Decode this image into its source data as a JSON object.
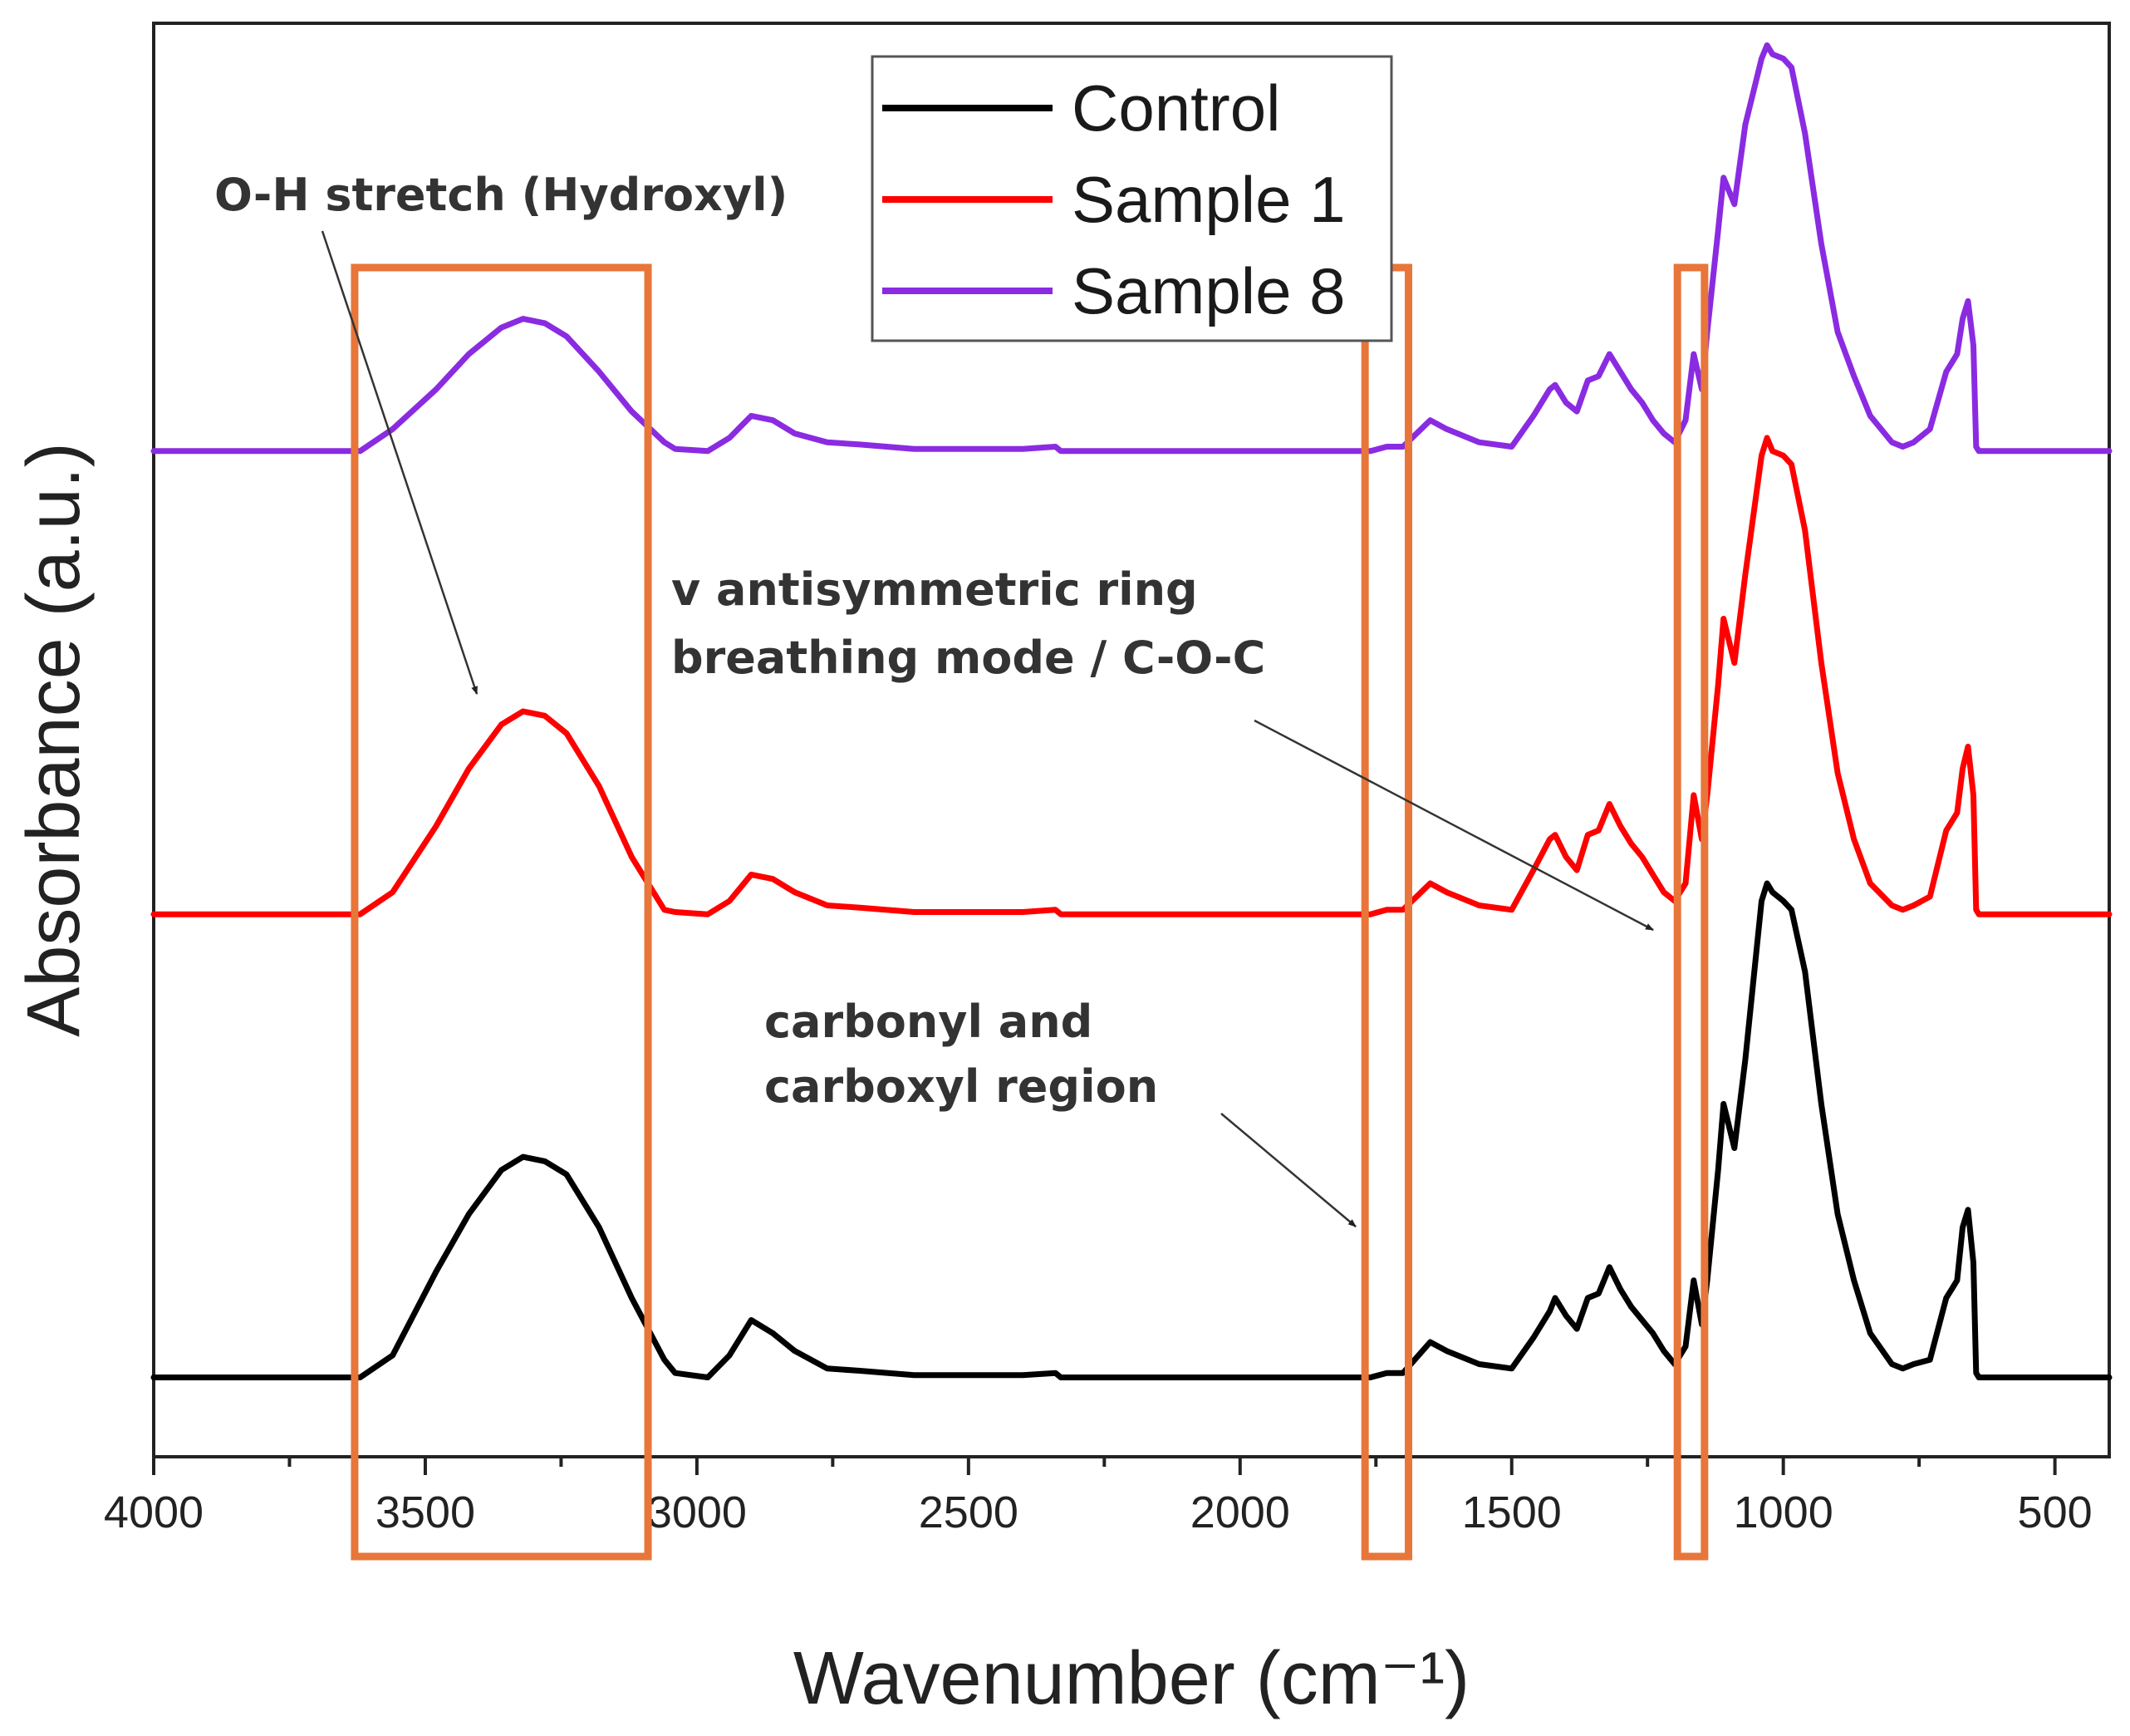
{
  "chart_data": {
    "type": "line",
    "title": "",
    "xlabel": "Wavenumber (cm⁻¹)",
    "ylabel": "Absorbance (a.u.)",
    "xlim": [
      4000,
      400
    ],
    "ylim": [
      0,
      3.25
    ],
    "x_reversed": true,
    "xticks": [
      4000,
      3500,
      3000,
      2500,
      2000,
      1500,
      1000,
      500
    ],
    "xtick_labels": [
      "4000",
      "3500",
      "3000",
      "2500",
      "2000",
      "1500",
      "1000",
      "500"
    ],
    "grid": false,
    "legend_position": "top-center",
    "series": [
      {
        "name": "Control",
        "color": "#000000",
        "points": [
          [
            4000,
            0.18
          ],
          [
            3620,
            0.18
          ],
          [
            3560,
            0.23
          ],
          [
            3480,
            0.42
          ],
          [
            3420,
            0.55
          ],
          [
            3360,
            0.65
          ],
          [
            3320,
            0.68
          ],
          [
            3280,
            0.67
          ],
          [
            3240,
            0.64
          ],
          [
            3180,
            0.52
          ],
          [
            3120,
            0.36
          ],
          [
            3060,
            0.22
          ],
          [
            3040,
            0.19
          ],
          [
            2980,
            0.18
          ],
          [
            2940,
            0.23
          ],
          [
            2900,
            0.31
          ],
          [
            2860,
            0.28
          ],
          [
            2820,
            0.24
          ],
          [
            2760,
            0.2
          ],
          [
            2700,
            0.195
          ],
          [
            2600,
            0.185
          ],
          [
            2500,
            0.185
          ],
          [
            2400,
            0.185
          ],
          [
            2340,
            0.19
          ],
          [
            2330,
            0.18
          ],
          [
            2200,
            0.18
          ],
          [
            1800,
            0.18
          ],
          [
            1760,
            0.18
          ],
          [
            1730,
            0.19
          ],
          [
            1700,
            0.19
          ],
          [
            1650,
            0.26
          ],
          [
            1620,
            0.24
          ],
          [
            1560,
            0.21
          ],
          [
            1500,
            0.2
          ],
          [
            1460,
            0.27
          ],
          [
            1430,
            0.33
          ],
          [
            1420,
            0.36
          ],
          [
            1400,
            0.32
          ],
          [
            1380,
            0.29
          ],
          [
            1360,
            0.36
          ],
          [
            1340,
            0.37
          ],
          [
            1320,
            0.43
          ],
          [
            1300,
            0.38
          ],
          [
            1280,
            0.34
          ],
          [
            1260,
            0.31
          ],
          [
            1240,
            0.28
          ],
          [
            1220,
            0.24
          ],
          [
            1200,
            0.21
          ],
          [
            1180,
            0.25
          ],
          [
            1165,
            0.4
          ],
          [
            1150,
            0.3
          ],
          [
            1140,
            0.4
          ],
          [
            1120,
            0.65
          ],
          [
            1110,
            0.8
          ],
          [
            1090,
            0.7
          ],
          [
            1070,
            0.9
          ],
          [
            1040,
            1.26
          ],
          [
            1030,
            1.3
          ],
          [
            1020,
            1.28
          ],
          [
            1000,
            1.26
          ],
          [
            985,
            1.24
          ],
          [
            960,
            1.1
          ],
          [
            930,
            0.8
          ],
          [
            900,
            0.55
          ],
          [
            870,
            0.4
          ],
          [
            840,
            0.28
          ],
          [
            800,
            0.21
          ],
          [
            780,
            0.2
          ],
          [
            760,
            0.21
          ],
          [
            730,
            0.22
          ],
          [
            700,
            0.36
          ],
          [
            690,
            0.38
          ],
          [
            680,
            0.4
          ],
          [
            670,
            0.52
          ],
          [
            660,
            0.56
          ],
          [
            650,
            0.44
          ],
          [
            645,
            0.19
          ],
          [
            640,
            0.18
          ],
          [
            400,
            0.18
          ]
        ]
      },
      {
        "name": "Sample 1",
        "color": "#ff0000",
        "points": [
          [
            4000,
            1.23
          ],
          [
            3620,
            1.23
          ],
          [
            3560,
            1.28
          ],
          [
            3480,
            1.43
          ],
          [
            3420,
            1.56
          ],
          [
            3360,
            1.66
          ],
          [
            3320,
            1.69
          ],
          [
            3280,
            1.68
          ],
          [
            3240,
            1.64
          ],
          [
            3180,
            1.52
          ],
          [
            3120,
            1.36
          ],
          [
            3060,
            1.24
          ],
          [
            3040,
            1.235
          ],
          [
            2980,
            1.23
          ],
          [
            2940,
            1.26
          ],
          [
            2900,
            1.32
          ],
          [
            2860,
            1.31
          ],
          [
            2820,
            1.28
          ],
          [
            2760,
            1.25
          ],
          [
            2700,
            1.245
          ],
          [
            2600,
            1.235
          ],
          [
            2500,
            1.235
          ],
          [
            2400,
            1.235
          ],
          [
            2340,
            1.24
          ],
          [
            2330,
            1.23
          ],
          [
            2200,
            1.23
          ],
          [
            1800,
            1.23
          ],
          [
            1760,
            1.23
          ],
          [
            1730,
            1.24
          ],
          [
            1700,
            1.24
          ],
          [
            1650,
            1.3
          ],
          [
            1620,
            1.28
          ],
          [
            1560,
            1.25
          ],
          [
            1500,
            1.24
          ],
          [
            1460,
            1.33
          ],
          [
            1430,
            1.4
          ],
          [
            1420,
            1.41
          ],
          [
            1400,
            1.36
          ],
          [
            1380,
            1.33
          ],
          [
            1360,
            1.41
          ],
          [
            1340,
            1.42
          ],
          [
            1320,
            1.48
          ],
          [
            1300,
            1.43
          ],
          [
            1280,
            1.39
          ],
          [
            1260,
            1.36
          ],
          [
            1240,
            1.32
          ],
          [
            1220,
            1.28
          ],
          [
            1200,
            1.26
          ],
          [
            1180,
            1.3
          ],
          [
            1165,
            1.5
          ],
          [
            1150,
            1.4
          ],
          [
            1140,
            1.5
          ],
          [
            1120,
            1.75
          ],
          [
            1110,
            1.9
          ],
          [
            1090,
            1.8
          ],
          [
            1070,
            2.0
          ],
          [
            1040,
            2.27
          ],
          [
            1030,
            2.31
          ],
          [
            1020,
            2.28
          ],
          [
            1000,
            2.27
          ],
          [
            985,
            2.25
          ],
          [
            960,
            2.1
          ],
          [
            930,
            1.8
          ],
          [
            900,
            1.55
          ],
          [
            870,
            1.4
          ],
          [
            840,
            1.3
          ],
          [
            800,
            1.25
          ],
          [
            780,
            1.24
          ],
          [
            760,
            1.25
          ],
          [
            730,
            1.27
          ],
          [
            700,
            1.42
          ],
          [
            690,
            1.44
          ],
          [
            680,
            1.46
          ],
          [
            670,
            1.56
          ],
          [
            660,
            1.61
          ],
          [
            650,
            1.5
          ],
          [
            645,
            1.24
          ],
          [
            640,
            1.23
          ],
          [
            400,
            1.23
          ]
        ]
      },
      {
        "name": "Sample 8",
        "color": "#8a2be2",
        "points": [
          [
            4000,
            2.28
          ],
          [
            3620,
            2.28
          ],
          [
            3560,
            2.33
          ],
          [
            3480,
            2.42
          ],
          [
            3420,
            2.5
          ],
          [
            3360,
            2.56
          ],
          [
            3320,
            2.58
          ],
          [
            3280,
            2.57
          ],
          [
            3240,
            2.54
          ],
          [
            3180,
            2.46
          ],
          [
            3120,
            2.37
          ],
          [
            3060,
            2.3
          ],
          [
            3040,
            2.285
          ],
          [
            2980,
            2.28
          ],
          [
            2940,
            2.31
          ],
          [
            2900,
            2.36
          ],
          [
            2860,
            2.35
          ],
          [
            2820,
            2.32
          ],
          [
            2760,
            2.3
          ],
          [
            2700,
            2.295
          ],
          [
            2600,
            2.285
          ],
          [
            2500,
            2.285
          ],
          [
            2400,
            2.285
          ],
          [
            2340,
            2.29
          ],
          [
            2330,
            2.28
          ],
          [
            2200,
            2.28
          ],
          [
            1800,
            2.28
          ],
          [
            1760,
            2.28
          ],
          [
            1730,
            2.29
          ],
          [
            1700,
            2.29
          ],
          [
            1650,
            2.35
          ],
          [
            1620,
            2.33
          ],
          [
            1560,
            2.3
          ],
          [
            1500,
            2.29
          ],
          [
            1460,
            2.36
          ],
          [
            1430,
            2.42
          ],
          [
            1420,
            2.43
          ],
          [
            1400,
            2.39
          ],
          [
            1380,
            2.37
          ],
          [
            1360,
            2.44
          ],
          [
            1340,
            2.45
          ],
          [
            1320,
            2.5
          ],
          [
            1300,
            2.46
          ],
          [
            1280,
            2.42
          ],
          [
            1260,
            2.39
          ],
          [
            1240,
            2.35
          ],
          [
            1220,
            2.32
          ],
          [
            1200,
            2.3
          ],
          [
            1180,
            2.35
          ],
          [
            1165,
            2.5
          ],
          [
            1150,
            2.42
          ],
          [
            1140,
            2.55
          ],
          [
            1120,
            2.78
          ],
          [
            1110,
            2.9
          ],
          [
            1090,
            2.84
          ],
          [
            1070,
            3.02
          ],
          [
            1040,
            3.17
          ],
          [
            1030,
            3.2
          ],
          [
            1020,
            3.18
          ],
          [
            1000,
            3.17
          ],
          [
            985,
            3.15
          ],
          [
            960,
            3.0
          ],
          [
            930,
            2.75
          ],
          [
            900,
            2.55
          ],
          [
            870,
            2.45
          ],
          [
            840,
            2.36
          ],
          [
            800,
            2.3
          ],
          [
            780,
            2.29
          ],
          [
            760,
            2.3
          ],
          [
            730,
            2.33
          ],
          [
            700,
            2.46
          ],
          [
            690,
            2.48
          ],
          [
            680,
            2.5
          ],
          [
            670,
            2.58
          ],
          [
            660,
            2.62
          ],
          [
            650,
            2.52
          ],
          [
            645,
            2.29
          ],
          [
            640,
            2.28
          ],
          [
            400,
            2.28
          ]
        ]
      }
    ],
    "highlight_regions": [
      {
        "x_from": 3630,
        "x_to": 3090,
        "color": "#e8753a"
      },
      {
        "x_from": 1770,
        "x_to": 1690,
        "color": "#e8753a"
      },
      {
        "x_from": 1195,
        "x_to": 1145,
        "color": "#e8753a"
      }
    ],
    "annotations": [
      {
        "lines": [
          "O-H stretch (Hydroxyl)"
        ]
      },
      {
        "lines": [
          "v antisymmetric ring",
          "breathing mode / C-O-C"
        ]
      },
      {
        "lines": [
          "carbonyl and",
          "carboxyl region"
        ]
      }
    ]
  }
}
